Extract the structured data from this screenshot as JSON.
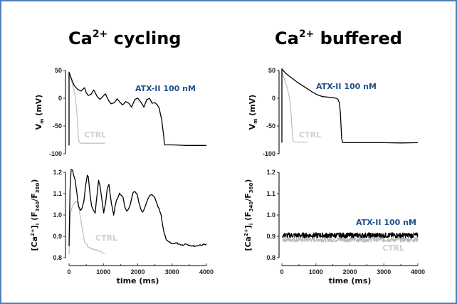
{
  "figure": {
    "colors": {
      "border": "#4f81bd",
      "atx": "#000000",
      "ctrl": "#b8b8b8",
      "atx_label": "#1f4e8c",
      "ctrl_label": "#d0d0d0"
    },
    "titles": [
      {
        "base": "Ca",
        "sup": "2+",
        "rest": " cycling"
      },
      {
        "base": "Ca",
        "sup": "2+",
        "rest": " buffered"
      }
    ]
  },
  "chart_data": [
    {
      "id": "vm-cycling",
      "type": "line",
      "title": "Ca2+ cycling",
      "xlabel": "",
      "ylabel": "Vm (mV)",
      "xlim": [
        0,
        4000
      ],
      "ylim": [
        -100,
        50
      ],
      "yticks": [
        "50",
        "0",
        "-50",
        "-100"
      ],
      "ytick_values": [
        50,
        0,
        -50,
        -100
      ],
      "annotations": [
        {
          "text": "ATX-II 100 nM",
          "series": "ATX-II 100 nM"
        },
        {
          "text": "CTRL",
          "series": "CTRL"
        }
      ],
      "series": [
        {
          "name": "CTRL",
          "color": "#b8b8b8",
          "x": [
            0,
            0,
            20,
            60,
            100,
            140,
            180,
            220,
            250,
            270,
            290,
            310,
            330,
            400,
            600,
            800,
            1000,
            1050
          ],
          "y": [
            -85,
            45,
            40,
            33,
            25,
            15,
            2,
            -20,
            -45,
            -70,
            -78,
            -80,
            -81,
            -81,
            -81,
            -81,
            -81,
            -81
          ]
        },
        {
          "name": "ATX-II 100 nM",
          "color": "#000000",
          "x": [
            0,
            0,
            30,
            80,
            150,
            250,
            350,
            450,
            500,
            560,
            640,
            720,
            820,
            900,
            980,
            1060,
            1150,
            1220,
            1320,
            1400,
            1480,
            1560,
            1650,
            1740,
            1820,
            1920,
            2000,
            2080,
            2180,
            2260,
            2340,
            2420,
            2500,
            2570,
            2620,
            2660,
            2700,
            2730,
            2760,
            2770,
            2780,
            2790,
            2800,
            3000,
            3200,
            3400,
            3600,
            3800,
            4000
          ],
          "y": [
            -85,
            47,
            42,
            33,
            23,
            16,
            13,
            19,
            10,
            5,
            7,
            15,
            3,
            -2,
            3,
            8,
            -4,
            -10,
            -8,
            -1,
            -7,
            -12,
            -6,
            -9,
            -16,
            -2,
            0,
            -6,
            -16,
            -3,
            0,
            -9,
            -8,
            -12,
            -17,
            -28,
            -40,
            -55,
            -70,
            -80,
            -83,
            -84,
            -84,
            -84,
            -84.5,
            -85,
            -85,
            -85,
            -85
          ]
        }
      ]
    },
    {
      "id": "vm-buffered",
      "type": "line",
      "title": "Ca2+ buffered",
      "xlabel": "",
      "ylabel": "Vm (mV)",
      "xlim": [
        0,
        4000
      ],
      "ylim": [
        -100,
        50
      ],
      "yticks": [
        "50",
        "0",
        "-50",
        "-100"
      ],
      "ytick_values": [
        50,
        0,
        -50,
        -100
      ],
      "annotations": [
        {
          "text": "ATX-II 100 nM",
          "series": "ATX-II 100 nM"
        },
        {
          "text": "CTRL",
          "series": "CTRL"
        }
      ],
      "series": [
        {
          "name": "CTRL",
          "color": "#b8b8b8",
          "x": [
            0,
            0,
            40,
            100,
            160,
            220,
            260,
            290,
            310,
            330,
            350,
            380,
            500,
            650,
            760
          ],
          "y": [
            -80,
            48,
            40,
            30,
            18,
            2,
            -18,
            -45,
            -68,
            -76,
            -78,
            -79,
            -79,
            -79,
            -79
          ]
        },
        {
          "name": "ATX-II 100 nM",
          "color": "#000000",
          "x": [
            0,
            0,
            50,
            150,
            300,
            450,
            600,
            750,
            900,
            1050,
            1200,
            1350,
            1500,
            1600,
            1650,
            1690,
            1720,
            1740,
            1760,
            1780,
            1800,
            2000,
            2500,
            3000,
            3500,
            4000
          ],
          "y": [
            -80,
            53,
            49,
            43,
            36,
            29,
            23,
            17,
            11,
            6,
            3,
            2,
            1,
            0,
            -2,
            -8,
            -25,
            -50,
            -72,
            -79,
            -80,
            -80,
            -80,
            -80,
            -80.5,
            -80
          ]
        }
      ]
    },
    {
      "id": "ca-cycling",
      "type": "line",
      "title": "",
      "xlabel": "time (ms)",
      "ylabel": "[Ca2+]i (F340/F380)",
      "xlim": [
        0,
        4000
      ],
      "ylim": [
        0.8,
        1.2
      ],
      "yticks": [
        "1.2",
        "1.1",
        "1.0",
        "0.9",
        "0.8"
      ],
      "ytick_values": [
        1.2,
        1.1,
        1.0,
        0.9,
        0.8
      ],
      "xticks": [
        "0",
        "1000",
        "2000",
        "3000",
        "4000"
      ],
      "xtick_values": [
        0,
        1000,
        2000,
        3000,
        4000
      ],
      "annotations": [
        {
          "text": "CTRL",
          "series": "CTRL"
        }
      ],
      "series": [
        {
          "name": "CTRL",
          "color": "#b8b8b8",
          "x": [
            0,
            20,
            40,
            80,
            130,
            180,
            230,
            260,
            300,
            340,
            380,
            420,
            460,
            520,
            600,
            700,
            800,
            900,
            1000,
            1050
          ],
          "y": [
            0.815,
            0.9,
            1.01,
            1.03,
            1.05,
            1.06,
            1.065,
            1.05,
            1.02,
            0.98,
            0.94,
            0.9,
            0.87,
            0.86,
            0.845,
            0.84,
            0.835,
            0.83,
            0.82,
            0.82
          ]
        },
        {
          "name": "ATX-II 100 nM",
          "color": "#000000",
          "x": [
            0,
            30,
            60,
            90,
            130,
            180,
            230,
            280,
            330,
            380,
            430,
            480,
            530,
            560,
            610,
            660,
            710,
            760,
            820,
            860,
            900,
            960,
            1010,
            1060,
            1110,
            1160,
            1210,
            1260,
            1300,
            1340,
            1380,
            1420,
            1470,
            1520,
            1570,
            1620,
            1680,
            1740,
            1800,
            1860,
            1920,
            1980,
            2030,
            2080,
            2140,
            2200,
            2260,
            2320,
            2380,
            2440,
            2500,
            2560,
            2620,
            2680,
            2720,
            2760,
            2800,
            2840,
            2880,
            2940,
            3000,
            3100,
            3200,
            3300,
            3400,
            3500,
            3600,
            3700,
            3800,
            3900,
            4000
          ],
          "y": [
            0.855,
            1.12,
            1.21,
            1.215,
            1.19,
            1.16,
            1.1,
            1.04,
            1.02,
            1.03,
            1.06,
            1.14,
            1.185,
            1.18,
            1.1,
            1.04,
            1.02,
            1.01,
            1.1,
            1.165,
            1.14,
            1.07,
            1.01,
            1.05,
            1.12,
            1.145,
            1.08,
            1.03,
            1.0,
            1.04,
            1.07,
            1.08,
            1.1,
            1.095,
            1.08,
            1.04,
            1.02,
            1.03,
            1.06,
            1.1,
            1.11,
            1.1,
            1.06,
            1.03,
            1.01,
            1.03,
            1.06,
            1.08,
            1.095,
            1.09,
            1.08,
            1.05,
            1.03,
            1.0,
            0.96,
            0.92,
            0.9,
            0.88,
            0.875,
            0.87,
            0.865,
            0.87,
            0.865,
            0.86,
            0.865,
            0.86,
            0.855,
            0.855,
            0.86,
            0.86,
            0.865
          ]
        }
      ]
    },
    {
      "id": "ca-buffered",
      "type": "line",
      "title": "",
      "xlabel": "time (ms)",
      "ylabel": "[Ca2+]i (F340/F380)",
      "xlim": [
        0,
        4000
      ],
      "ylim": [
        0.8,
        1.2
      ],
      "yticks": [
        "1.2",
        "1.1",
        "1.0",
        "0.9",
        "0.8"
      ],
      "ytick_values": [
        1.2,
        1.1,
        1.0,
        0.9,
        0.8
      ],
      "xticks": [
        "0",
        "1000",
        "2000",
        "3000",
        "4000"
      ],
      "xtick_values": [
        0,
        1000,
        2000,
        3000,
        4000
      ],
      "annotations": [
        {
          "text": "ATX-II 100 nM",
          "series": "ATX-II 100 nM"
        },
        {
          "text": "CTRL",
          "series": "CTRL"
        }
      ],
      "series": [
        {
          "name": "CTRL",
          "color": "#b8b8b8",
          "mean": 0.885,
          "noise": 0.012,
          "x_range": [
            0,
            4000
          ]
        },
        {
          "name": "ATX-II 100 nM",
          "color": "#000000",
          "mean": 0.905,
          "noise": 0.012,
          "x_range": [
            0,
            4000
          ]
        }
      ]
    }
  ]
}
